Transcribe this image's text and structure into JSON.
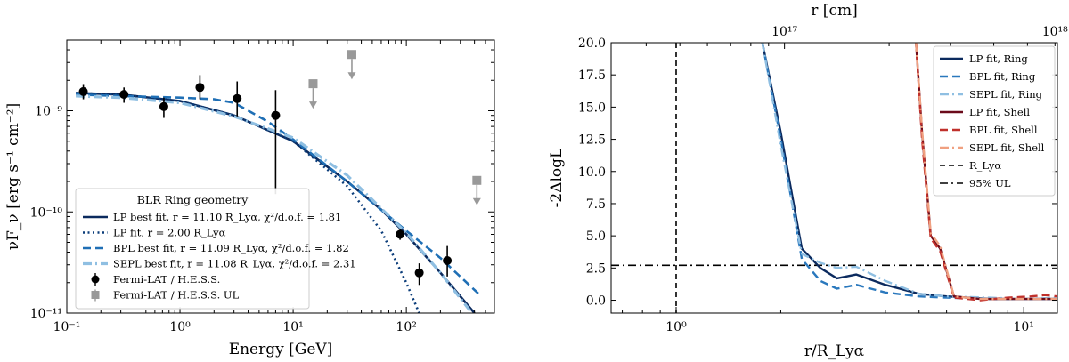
{
  "chart_data": [
    {
      "type": "scatter",
      "title": "",
      "xlabel": "Energy [GeV]",
      "ylabel": "νF_ν [erg s⁻¹ cm⁻²]",
      "xscale": "log",
      "yscale": "log",
      "xlim": [
        0.1,
        600
      ],
      "ylim": [
        1e-11,
        5e-09
      ],
      "xticks": [
        {
          "v": 0.1,
          "label": "10⁻¹"
        },
        {
          "v": 1,
          "label": "10⁰"
        },
        {
          "v": 10,
          "label": "10¹"
        },
        {
          "v": 100,
          "label": "10²"
        }
      ],
      "yticks": [
        {
          "v": 1e-11,
          "label": "10⁻¹¹"
        },
        {
          "v": 1e-10,
          "label": "10⁻¹⁰"
        },
        {
          "v": 1e-09,
          "label": "10⁻⁹"
        }
      ],
      "legend": {
        "title": "BLR Ring geometry",
        "position": "lower-left",
        "entries": [
          "LP best fit, r = 11.10 R_Lyα, χ²/d.o.f. = 1.81",
          "LP fit, r = 2.00 R_Lyα",
          "BPL best fit, r = 11.09 R_Lyα, χ²/d.o.f. = 1.82",
          "SEPL best fit, r = 11.08 R_Lyα, χ²/d.o.f. = 2.31",
          "Fermi-LAT / H.E.S.S.",
          "Fermi-LAT / H.E.S.S. UL"
        ]
      },
      "points": [
        {
          "x": 0.14,
          "y": 1.55e-09,
          "ylo": 1.3e-09,
          "yhi": 1.8e-09
        },
        {
          "x": 0.32,
          "y": 1.45e-09,
          "ylo": 1.2e-09,
          "yhi": 1.7e-09
        },
        {
          "x": 0.72,
          "y": 1.1e-09,
          "ylo": 8.5e-10,
          "yhi": 1.35e-09
        },
        {
          "x": 1.5,
          "y": 1.7e-09,
          "ylo": 1.3e-09,
          "yhi": 2.25e-09
        },
        {
          "x": 3.2,
          "y": 1.32e-09,
          "ylo": 8.8e-10,
          "yhi": 1.95e-09
        },
        {
          "x": 7.0,
          "y": 9e-10,
          "ylo": 1.5e-10,
          "yhi": 1.6e-09
        },
        {
          "x": 88,
          "y": 6e-11,
          "ylo": 5.3e-11,
          "yhi": 6.8e-11
        },
        {
          "x": 130,
          "y": 2.5e-11,
          "ylo": 1.9e-11,
          "yhi": 3.1e-11
        },
        {
          "x": 230,
          "y": 3.3e-11,
          "ylo": 2.3e-11,
          "yhi": 4.6e-11
        }
      ],
      "upper_limits": [
        {
          "x": 15,
          "y": 1.85e-09
        },
        {
          "x": 33,
          "y": 3.6e-09
        },
        {
          "x": 420,
          "y": 2.05e-10
        }
      ],
      "series": [
        {
          "name": "LP best fit",
          "color": "#0b2a5e",
          "dash": "solid",
          "x": [
            0.12,
            0.3,
            1,
            3,
            10,
            30,
            60,
            100,
            200,
            400
          ],
          "y": [
            1.5e-09,
            1.45e-09,
            1.25e-09,
            9e-10,
            5e-10,
            2e-10,
            1.05e-10,
            6e-11,
            2.5e-11,
            1e-11
          ]
        },
        {
          "name": "LP fit",
          "color": "#0b3d7a",
          "dash": "dotted",
          "x": [
            0.12,
            0.3,
            1,
            3,
            10,
            30,
            60,
            100,
            130
          ],
          "y": [
            1.5e-09,
            1.45e-09,
            1.25e-09,
            9e-10,
            5e-10,
            1.8e-10,
            6.5e-11,
            2e-11,
            1e-11
          ]
        },
        {
          "name": "BPL best fit",
          "color": "#1f6fb5",
          "dash": "dashed",
          "x": [
            0.12,
            0.3,
            1,
            2,
            3,
            6,
            10,
            30,
            100,
            200,
            450
          ],
          "y": [
            1.45e-09,
            1.4e-09,
            1.35e-09,
            1.3e-09,
            1.2e-09,
            7.8e-10,
            5.2e-10,
            2e-10,
            6.5e-11,
            3.5e-11,
            1.5e-11
          ]
        },
        {
          "name": "SEPL best fit",
          "color": "#8fbfe2",
          "dash": "dashdot",
          "x": [
            0.12,
            0.3,
            1,
            3,
            10,
            30,
            100,
            200,
            380
          ],
          "y": [
            1.4e-09,
            1.35e-09,
            1.2e-09,
            8.8e-10,
            5.4e-10,
            2.3e-10,
            6.2e-11,
            2.5e-11,
            1e-11
          ]
        }
      ]
    },
    {
      "type": "line",
      "title": "",
      "xlabel": "r/R_Lyα",
      "ylabel": "-2ΔlogL",
      "top_xlabel": "r [cm]",
      "xscale": "log",
      "xlim": [
        0.65,
        12.5
      ],
      "ylim": [
        -1,
        20
      ],
      "xticks": [
        {
          "v": 1,
          "label": "10⁰"
        },
        {
          "v": 10,
          "label": "10¹"
        }
      ],
      "yticks": [
        {
          "v": 0,
          "label": "0.0"
        },
        {
          "v": 2.5,
          "label": "2.5"
        },
        {
          "v": 5,
          "label": "5.0"
        },
        {
          "v": 7.5,
          "label": "7.5"
        },
        {
          "v": 10,
          "label": "10.0"
        },
        {
          "v": 12.5,
          "label": "12.5"
        },
        {
          "v": 15,
          "label": "15.0"
        },
        {
          "v": 17.5,
          "label": "17.5"
        },
        {
          "v": 20,
          "label": "20.0"
        }
      ],
      "top_xticks": [
        {
          "v": 2.05,
          "label": "10¹⁷"
        },
        {
          "v": 12.3,
          "label": "10¹⁸"
        }
      ],
      "legend": {
        "position": "upper-right",
        "entries": [
          "LP fit, Ring",
          "BPL fit, Ring",
          "SEPL fit, Ring",
          "LP fit, Shell",
          "BPL fit, Shell",
          "SEPL fit, Shell",
          "R_Lyα",
          "95% UL"
        ]
      },
      "vline": {
        "name": "R_Lyα",
        "x": 1.0,
        "color": "#000000"
      },
      "hline": {
        "name": "95% UL",
        "y": 2.71,
        "color": "#000000"
      },
      "series": [
        {
          "name": "LP fit, Ring",
          "color": "#0b2a5e",
          "dash": "solid",
          "x": [
            1.77,
            2.0,
            2.3,
            2.6,
            2.9,
            3.3,
            4.0,
            5.0,
            6.0,
            8.0,
            10,
            12.5
          ],
          "y": [
            20,
            13,
            4.0,
            2.5,
            1.7,
            2.0,
            1.2,
            0.5,
            0.3,
            0.1,
            0.1,
            0.1
          ]
        },
        {
          "name": "BPL fit, Ring",
          "color": "#2a78bd",
          "dash": "dashed",
          "x": [
            1.77,
            2.0,
            2.3,
            2.6,
            2.9,
            3.3,
            4.0,
            5.0,
            6.0,
            8.0,
            10,
            12.5
          ],
          "y": [
            20,
            12.5,
            3.2,
            1.5,
            0.9,
            1.2,
            0.6,
            0.3,
            0.2,
            0.1,
            0.1,
            0.1
          ]
        },
        {
          "name": "SEPL fit, Ring",
          "color": "#8fbfe2",
          "dash": "dashdot",
          "x": [
            1.77,
            2.0,
            2.3,
            2.6,
            2.9,
            3.3,
            4.0,
            5.0,
            6.0,
            8.0,
            10,
            12.5
          ],
          "y": [
            20,
            12.0,
            3.6,
            2.9,
            2.5,
            2.6,
            1.5,
            0.5,
            0.3,
            0.2,
            0.1,
            0.2
          ]
        },
        {
          "name": "LP fit, Shell",
          "color": "#6b0a1a",
          "dash": "solid",
          "x": [
            4.9,
            5.1,
            5.4,
            5.75,
            6.3,
            7.5,
            9.0,
            10.5,
            11.5,
            12.5
          ],
          "y": [
            20,
            13,
            5.0,
            4.0,
            0.3,
            0.1,
            0.1,
            0.1,
            0.1,
            0.1
          ]
        },
        {
          "name": "BPL fit, Shell",
          "color": "#c0302b",
          "dash": "dashed",
          "x": [
            4.9,
            5.1,
            5.4,
            5.75,
            6.3,
            7.5,
            9.0,
            10.5,
            11.5,
            12.5
          ],
          "y": [
            20,
            12.5,
            4.8,
            3.8,
            0.2,
            0.0,
            0.2,
            0.3,
            0.4,
            0.3
          ]
        },
        {
          "name": "SEPL fit, Shell",
          "color": "#f0a080",
          "dash": "dashdot",
          "x": [
            4.9,
            5.1,
            5.4,
            5.75,
            6.3,
            7.5,
            9.0,
            10.5,
            11.5,
            12.5
          ],
          "y": [
            20,
            13.2,
            5.2,
            4.2,
            0.3,
            0.1,
            0.1,
            0.1,
            0.1,
            0.1
          ]
        }
      ]
    }
  ]
}
